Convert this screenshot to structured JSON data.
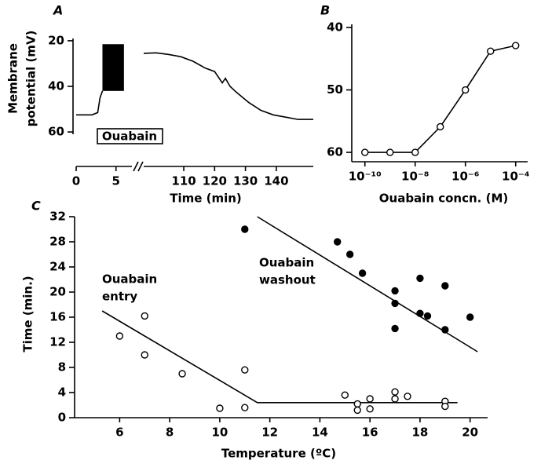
{
  "chart_data": [
    {
      "type": "line",
      "panel": "A",
      "ylabel": [
        "Membrane",
        "potential (mV)"
      ],
      "xlabel": "Time (min)",
      "xlim": [
        0,
        152
      ],
      "xbreak": [
        7,
        97
      ],
      "ylim": [
        61,
        19
      ],
      "xticks": [
        0,
        5,
        110,
        120,
        130,
        140
      ],
      "yticks": [
        20,
        40,
        60
      ],
      "color": "#000000",
      "annotation": "Ouabain",
      "burst": {
        "x": [
          3.3,
          6.0
        ],
        "values": [
          21.5,
          42
        ]
      },
      "series": [
        {
          "x": [
            0,
            2,
            2.7,
            3.0,
            3.3
          ],
          "values": [
            52.5,
            52.5,
            51.5,
            45,
            42
          ]
        },
        {
          "x": [
            97,
            101,
            105,
            109,
            113,
            117,
            120,
            122.5,
            123.5,
            125,
            127,
            131,
            135,
            139,
            143,
            147,
            152
          ],
          "values": [
            25.5,
            25.3,
            26,
            27,
            29,
            32,
            33.5,
            38.5,
            36.5,
            40,
            42.5,
            47,
            50.5,
            52.5,
            53.5,
            54.5,
            54.5
          ]
        }
      ]
    },
    {
      "type": "line",
      "panel": "B",
      "xlabel": "Ouabain concn. (M)",
      "log_x": true,
      "xlim": [
        3e-11,
        0.0003
      ],
      "ylim": [
        61.5,
        39.5
      ],
      "xticks": [
        {
          "value": 1e-10,
          "label": "10⁻¹⁰"
        },
        {
          "value": 1e-08,
          "label": "10⁻⁸"
        },
        {
          "value": 1e-06,
          "label": "10⁻⁶"
        },
        {
          "value": 0.0001,
          "label": "10⁻⁴"
        }
      ],
      "yticks": [
        40,
        50,
        60
      ],
      "marker": "open",
      "color": "#000000",
      "x": [
        1e-10,
        1e-09,
        1e-08,
        1e-07,
        1e-06,
        1e-05,
        0.0001
      ],
      "values": [
        60,
        60,
        60,
        55.9,
        50,
        43.8,
        42.9
      ]
    },
    {
      "type": "scatter",
      "panel": "C",
      "xlabel": "Temperature (ºC)",
      "ylabel": "Time (min.)",
      "xlim": [
        4.2,
        20.7
      ],
      "ylim": [
        0,
        32
      ],
      "xticks": [
        6,
        8,
        10,
        12,
        14,
        16,
        18,
        20
      ],
      "yticks": [
        0,
        4,
        8,
        12,
        16,
        20,
        24,
        28,
        32
      ],
      "color": "#000000",
      "annotations": [
        [
          "Ouabain",
          "entry"
        ],
        [
          "Ouabain",
          "washout"
        ]
      ],
      "series": [
        {
          "marker": "open",
          "x": [
            6,
            7,
            7,
            8.5,
            10,
            11,
            11,
            15,
            15.5,
            15.5,
            16,
            16,
            17,
            17,
            17.5,
            19,
            19
          ],
          "values": [
            13,
            16.2,
            10,
            7,
            1.5,
            7.6,
            1.6,
            3.6,
            2.2,
            1.2,
            3,
            1.4,
            4.1,
            3,
            3.4,
            2.6,
            1.8
          ]
        },
        {
          "marker": "filled",
          "x": [
            11,
            14.7,
            15.2,
            15.7,
            17,
            17,
            17,
            18,
            18,
            18.3,
            19,
            19,
            20
          ],
          "values": [
            30,
            28,
            26,
            23,
            20.2,
            18.2,
            14.2,
            22.2,
            16.6,
            16.2,
            21,
            14,
            16
          ]
        }
      ],
      "fit_lines": [
        {
          "x": [
            5.3,
            11.5,
            19.5
          ],
          "values": [
            17,
            2.4,
            2.4
          ]
        },
        {
          "x": [
            11.5,
            20.3
          ],
          "values": [
            32,
            10.5
          ]
        }
      ]
    }
  ]
}
